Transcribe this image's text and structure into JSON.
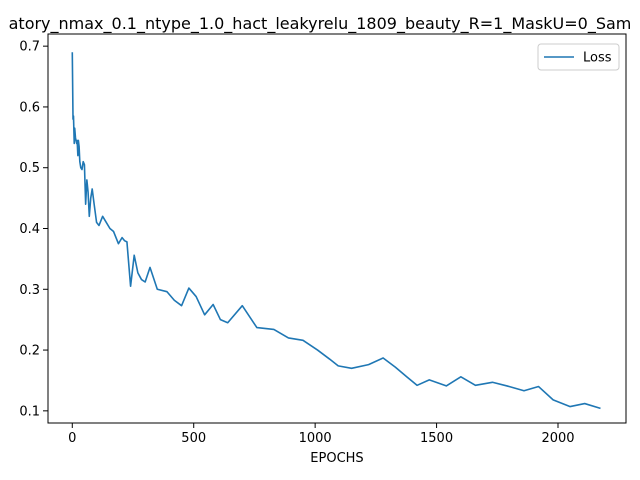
{
  "chart_data": {
    "type": "line",
    "title": "atory_nmax_0.1_ntype_1.0_hact_leakyrelu_1809_beauty_R=1_MaskU=0_Sam",
    "xlabel": "EPOCHS",
    "ylabel": "",
    "xlim": [
      -100,
      2280
    ],
    "ylim": [
      0.08,
      0.72
    ],
    "xticks": [
      0,
      500,
      1000,
      1500,
      2000
    ],
    "yticks": [
      0.1,
      0.2,
      0.3,
      0.4,
      0.5,
      0.6,
      0.7
    ],
    "xtick_labels": [
      "0",
      "500",
      "1000",
      "1500",
      "2000"
    ],
    "ytick_labels": [
      "0.1",
      "0.2",
      "0.3",
      "0.4",
      "0.5",
      "0.6",
      "0.7"
    ],
    "grid": false,
    "legend_position": "top-right",
    "series": [
      {
        "name": "Loss",
        "color": "#1f77b4",
        "x": [
          0,
          3,
          5,
          8,
          10,
          13,
          15,
          18,
          20,
          23,
          25,
          28,
          31,
          35,
          40,
          45,
          50,
          55,
          60,
          65,
          70,
          76,
          82,
          90,
          100,
          110,
          125,
          140,
          155,
          170,
          190,
          205,
          215,
          225,
          240,
          255,
          270,
          285,
          300,
          320,
          350,
          390,
          420,
          450,
          480,
          510,
          545,
          580,
          610,
          640,
          700,
          760,
          830,
          890,
          950,
          1010,
          1060,
          1095,
          1150,
          1220,
          1280,
          1330,
          1380,
          1420,
          1470,
          1540,
          1600,
          1660,
          1730,
          1790,
          1860,
          1920,
          1980,
          2050,
          2110,
          2175
        ],
        "values": [
          0.69,
          0.58,
          0.585,
          0.54,
          0.565,
          0.55,
          0.545,
          0.54,
          0.545,
          0.52,
          0.545,
          0.535,
          0.51,
          0.5,
          0.497,
          0.51,
          0.505,
          0.44,
          0.48,
          0.46,
          0.42,
          0.45,
          0.465,
          0.44,
          0.41,
          0.405,
          0.42,
          0.41,
          0.4,
          0.395,
          0.375,
          0.385,
          0.38,
          0.378,
          0.305,
          0.356,
          0.327,
          0.316,
          0.312,
          0.336,
          0.3,
          0.296,
          0.282,
          0.273,
          0.302,
          0.288,
          0.258,
          0.275,
          0.25,
          0.245,
          0.273,
          0.237,
          0.234,
          0.22,
          0.216,
          0.2,
          0.185,
          0.174,
          0.17,
          0.176,
          0.187,
          0.172,
          0.155,
          0.142,
          0.151,
          0.141,
          0.156,
          0.142,
          0.147,
          0.141,
          0.133,
          0.14,
          0.118,
          0.107,
          0.112,
          0.104
        ]
      }
    ]
  }
}
